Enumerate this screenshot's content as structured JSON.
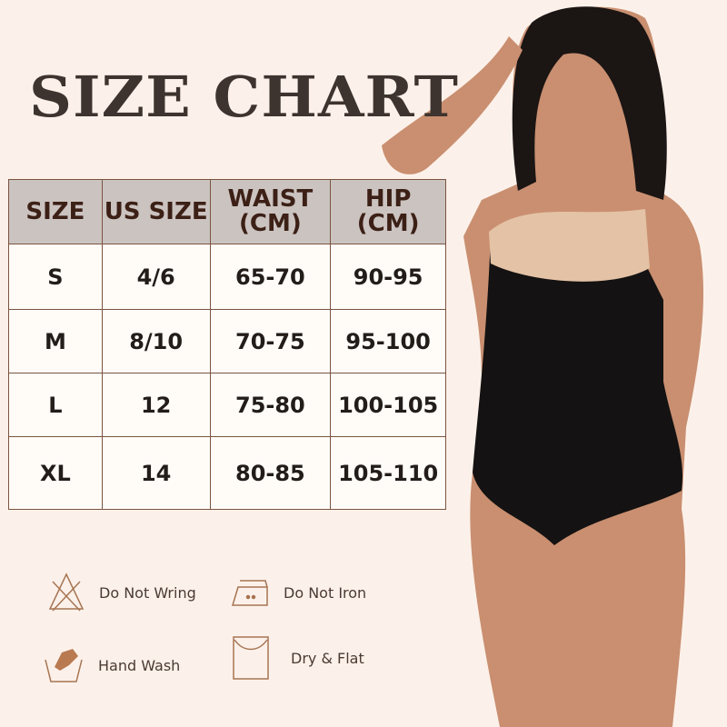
{
  "title": "SIZE CHART",
  "table": {
    "headers": [
      [
        "SIZE",
        ""
      ],
      [
        "US SIZE",
        ""
      ],
      [
        "WAIST",
        "(CM)"
      ],
      [
        "HIP",
        "(CM)"
      ]
    ],
    "rows": [
      [
        "S",
        "4/6",
        "65-70",
        "90-95"
      ],
      [
        "M",
        "8/10",
        "70-75",
        "95-100"
      ],
      [
        "L",
        "12",
        "75-80",
        "100-105"
      ],
      [
        "XL",
        "14",
        "80-85",
        "105-110"
      ]
    ]
  },
  "care": [
    {
      "icon": "do-not-wring-icon",
      "label": "Do Not Wring"
    },
    {
      "icon": "do-not-iron-icon",
      "label": "Do Not Iron"
    },
    {
      "icon": "hand-wash-icon",
      "label": "Hand Wash"
    },
    {
      "icon": "dry-flat-icon",
      "label": "Dry & Flat"
    }
  ],
  "colors": {
    "background": "#fcf1ea",
    "header": "#cbc3c0",
    "border": "#7a5440",
    "icon": "#a67452"
  }
}
